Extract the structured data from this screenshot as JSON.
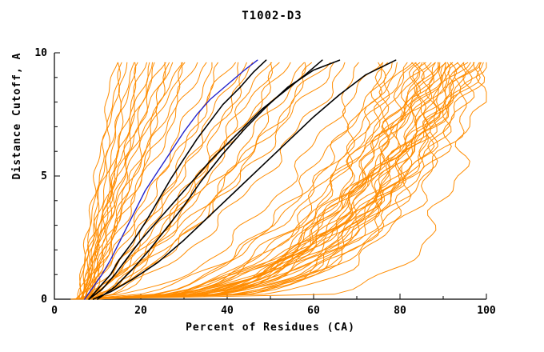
{
  "chart_data": {
    "type": "line",
    "title": "T1002-D3",
    "xlabel": "Percent of Residues (CA)",
    "ylabel": "Distance Cutoff, A",
    "xlim": [
      0,
      100
    ],
    "ylim": [
      0,
      10
    ],
    "x_major_ticks": [
      0,
      20,
      40,
      60,
      80,
      100
    ],
    "x_minor_ticks": [
      10,
      30,
      50,
      70,
      90
    ],
    "y_major_ticks": [
      0,
      5,
      10
    ],
    "y_minor_ticks": [
      1,
      2,
      3,
      4,
      6,
      7,
      8,
      9
    ],
    "y_curve_top": 9.7,
    "colors": {
      "models": "#FF8C00",
      "native_like": "#000000",
      "highlight": "#2222CC",
      "axis": "#000000"
    },
    "orange_curves": [
      [
        6,
        14,
        1.15
      ],
      [
        7,
        15,
        1.0
      ],
      [
        6,
        16,
        1.3
      ],
      [
        7,
        17,
        1.1
      ],
      [
        8,
        18,
        0.95
      ],
      [
        6,
        19,
        1.25
      ],
      [
        7,
        20,
        1.05
      ],
      [
        8,
        21,
        1.2
      ],
      [
        6,
        22,
        0.9
      ],
      [
        7,
        23,
        1.15
      ],
      [
        8,
        24,
        1.0
      ],
      [
        6,
        25,
        1.3
      ],
      [
        7,
        26,
        1.1
      ],
      [
        8,
        27,
        0.95
      ],
      [
        6,
        28,
        1.2
      ],
      [
        7,
        29,
        1.0
      ],
      [
        8,
        30,
        1.15
      ],
      [
        6,
        31,
        0.9
      ],
      [
        7,
        33,
        1.05
      ],
      [
        8,
        35,
        1.1
      ],
      [
        7,
        37,
        0.85
      ],
      [
        8,
        39,
        0.7
      ],
      [
        6,
        41,
        0.9
      ],
      [
        7,
        43,
        0.75
      ],
      [
        8,
        45,
        0.6
      ],
      [
        6,
        47,
        0.85
      ],
      [
        7,
        49,
        0.65
      ],
      [
        8,
        51,
        0.8
      ],
      [
        6,
        53,
        0.7
      ],
      [
        7,
        55,
        0.85
      ],
      [
        8,
        57,
        0.6
      ],
      [
        6,
        59,
        0.75
      ],
      [
        7,
        61,
        0.65
      ],
      [
        8,
        63,
        0.8
      ],
      [
        6,
        65,
        0.7
      ],
      [
        7,
        68,
        0.6
      ],
      [
        6,
        72,
        0.45
      ],
      [
        7,
        74,
        0.38
      ],
      [
        8,
        76,
        0.3
      ],
      [
        6,
        78,
        0.42
      ],
      [
        7,
        80,
        0.27
      ],
      [
        8,
        82,
        0.36
      ],
      [
        6,
        84,
        0.24
      ],
      [
        7,
        86,
        0.33
      ],
      [
        8,
        88,
        0.22
      ],
      [
        6,
        90,
        0.3
      ],
      [
        7,
        92,
        0.26
      ],
      [
        8,
        94,
        0.35
      ],
      [
        7,
        96,
        0.23
      ],
      [
        6,
        98,
        0.31
      ],
      [
        5,
        100,
        0.12
      ],
      [
        7,
        77,
        0.2
      ],
      [
        8,
        81,
        0.44
      ],
      [
        6,
        85,
        0.28
      ],
      [
        7,
        87,
        0.36
      ],
      [
        8,
        89,
        0.24
      ],
      [
        6,
        91,
        0.32
      ],
      [
        7,
        93,
        0.21
      ],
      [
        8,
        95,
        0.29
      ],
      [
        6,
        97,
        0.37
      ],
      [
        7,
        99,
        0.25
      ],
      [
        8,
        79,
        0.33
      ],
      [
        6,
        83,
        0.26
      ],
      [
        7,
        85,
        0.4
      ],
      [
        8,
        87,
        0.28
      ],
      [
        6,
        89,
        0.34
      ],
      [
        7,
        91,
        0.22
      ],
      [
        8,
        93,
        0.3
      ],
      [
        6,
        95,
        0.26
      ],
      [
        7,
        97,
        0.34
      ],
      [
        8,
        99,
        0.21
      ],
      [
        6,
        88,
        0.29
      ],
      [
        7,
        90,
        0.37
      ],
      [
        8,
        92,
        0.25
      ],
      [
        6,
        94,
        0.33
      ],
      [
        7,
        96,
        0.28
      ],
      [
        8,
        98,
        0.24
      ],
      [
        6,
        86,
        0.31
      ]
    ],
    "black_curves": [
      [
        [
          8,
          0
        ],
        [
          10,
          0.4
        ],
        [
          13,
          1
        ],
        [
          15,
          1.6
        ],
        [
          18,
          2.3
        ],
        [
          21,
          3.1
        ],
        [
          24,
          4
        ],
        [
          27,
          4.9
        ],
        [
          30,
          5.7
        ],
        [
          33,
          6.5
        ],
        [
          36,
          7.2
        ],
        [
          39,
          7.9
        ],
        [
          43,
          8.6
        ],
        [
          46,
          9.2
        ],
        [
          49,
          9.7
        ]
      ],
      [
        [
          8,
          0
        ],
        [
          11,
          0.4
        ],
        [
          14,
          1
        ],
        [
          17,
          1.7
        ],
        [
          20,
          2.4
        ],
        [
          24,
          3.2
        ],
        [
          28,
          4
        ],
        [
          32,
          4.8
        ],
        [
          36,
          5.6
        ],
        [
          40,
          6.3
        ],
        [
          44,
          7
        ],
        [
          48,
          7.7
        ],
        [
          53,
          8.4
        ],
        [
          58,
          9.1
        ],
        [
          62,
          9.7
        ]
      ],
      [
        [
          10,
          0
        ],
        [
          14,
          0.5
        ],
        [
          18,
          1.2
        ],
        [
          22,
          2
        ],
        [
          26,
          2.9
        ],
        [
          30,
          3.8
        ],
        [
          34,
          4.8
        ],
        [
          39,
          5.9
        ],
        [
          44,
          6.9
        ],
        [
          49,
          7.8
        ],
        [
          54,
          8.6
        ],
        [
          60,
          9.3
        ],
        [
          66,
          9.7
        ]
      ],
      [
        [
          9,
          0
        ],
        [
          13,
          0.3
        ],
        [
          18,
          0.8
        ],
        [
          24,
          1.5
        ],
        [
          30,
          2.4
        ],
        [
          36,
          3.4
        ],
        [
          42,
          4.4
        ],
        [
          48,
          5.4
        ],
        [
          54,
          6.4
        ],
        [
          60,
          7.4
        ],
        [
          66,
          8.3
        ],
        [
          72,
          9.1
        ],
        [
          79,
          9.7
        ]
      ]
    ],
    "blue_curve": [
      [
        7,
        0
      ],
      [
        9,
        0.5
      ],
      [
        11,
        1
      ],
      [
        13,
        1.6
      ],
      [
        15,
        2.3
      ],
      [
        17,
        3
      ],
      [
        19,
        3.7
      ],
      [
        21,
        4.4
      ],
      [
        24,
        5.2
      ],
      [
        27,
        6
      ],
      [
        30,
        6.8
      ],
      [
        33,
        7.5
      ],
      [
        36,
        8.1
      ],
      [
        40,
        8.7
      ],
      [
        44,
        9.3
      ],
      [
        47,
        9.7
      ]
    ]
  }
}
